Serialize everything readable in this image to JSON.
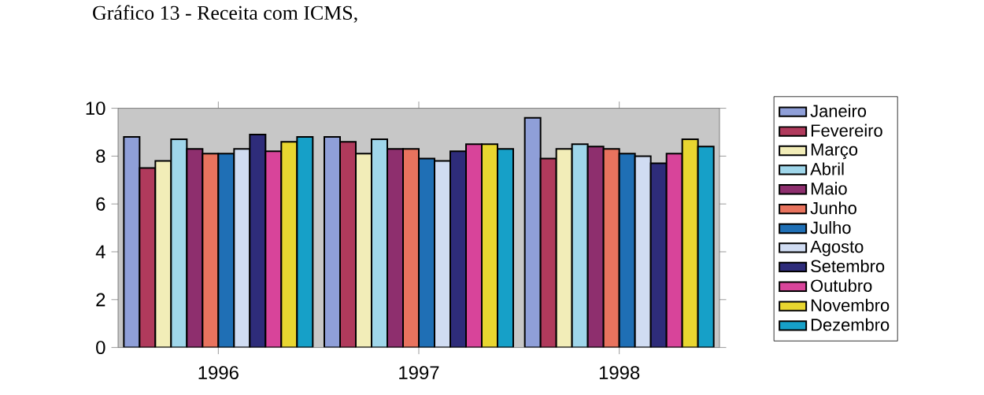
{
  "chart_data": {
    "type": "bar",
    "title": "Gráfico 13 - Receita com ICMS,",
    "categories": [
      "1996",
      "1997",
      "1998"
    ],
    "series": [
      {
        "name": "Janeiro",
        "color": "#8f9fd8",
        "values": [
          8.8,
          8.8,
          9.6
        ]
      },
      {
        "name": "Fevereiro",
        "color": "#b03a5c",
        "values": [
          7.5,
          8.6,
          7.9
        ]
      },
      {
        "name": "Março",
        "color": "#f2edb8",
        "values": [
          7.8,
          8.1,
          8.3
        ]
      },
      {
        "name": "Abril",
        "color": "#9fd6ea",
        "values": [
          8.7,
          8.7,
          8.5
        ]
      },
      {
        "name": "Maio",
        "color": "#8e2f6e",
        "values": [
          8.3,
          8.3,
          8.4
        ]
      },
      {
        "name": "Junho",
        "color": "#e8735e",
        "values": [
          8.1,
          8.3,
          8.3
        ]
      },
      {
        "name": "Julho",
        "color": "#1f6fb5",
        "values": [
          8.1,
          7.9,
          8.1
        ]
      },
      {
        "name": "Agosto",
        "color": "#d0dcf2",
        "values": [
          8.3,
          7.8,
          8.0
        ]
      },
      {
        "name": "Setembro",
        "color": "#2e2c7a",
        "values": [
          8.9,
          8.2,
          7.7
        ]
      },
      {
        "name": "Outubro",
        "color": "#d8449a",
        "values": [
          8.2,
          8.5,
          8.1
        ]
      },
      {
        "name": "Novembro",
        "color": "#e8d630",
        "values": [
          8.6,
          8.5,
          8.7
        ]
      },
      {
        "name": "Dezembro",
        "color": "#16a0c8",
        "values": [
          8.8,
          8.3,
          8.4
        ]
      }
    ],
    "ylim": [
      0,
      10
    ],
    "yticks": [
      0,
      2,
      4,
      6,
      8,
      10
    ],
    "legend": "right"
  }
}
